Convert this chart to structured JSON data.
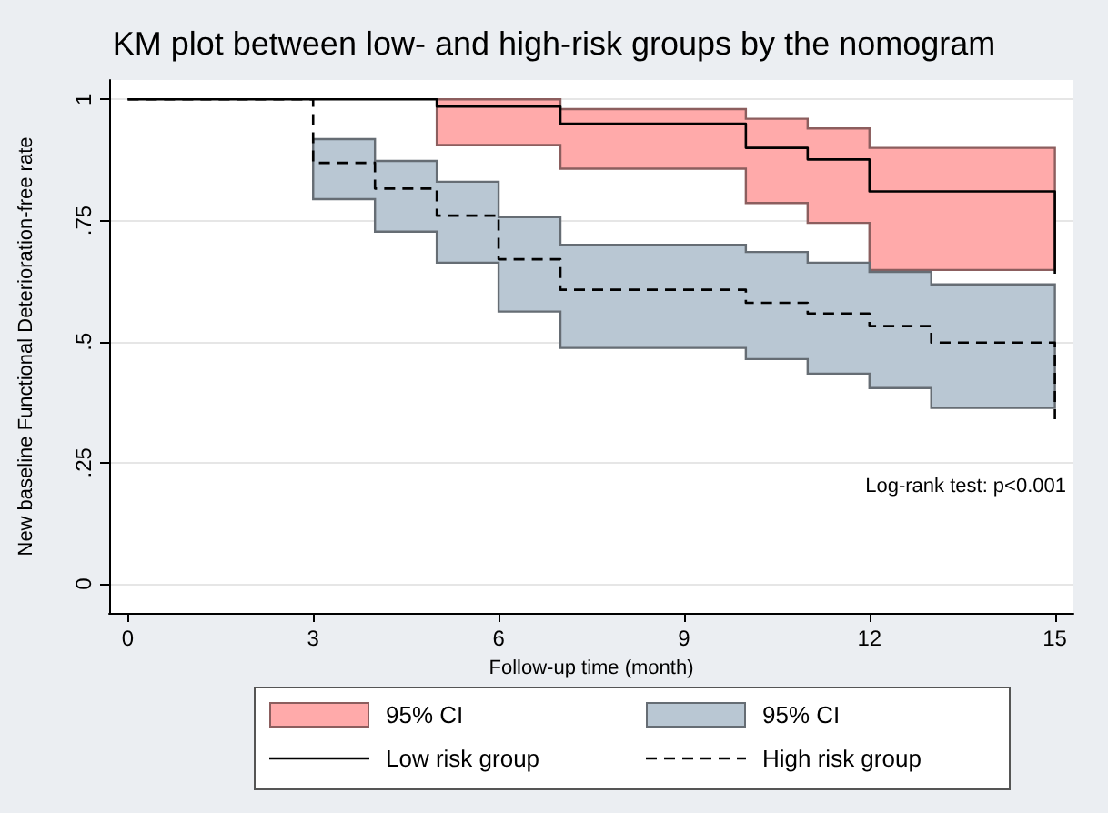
{
  "chart_data": {
    "type": "step",
    "title": "KM plot between low- and high-risk groups by the nomogram",
    "xlabel": "Follow-up time (month)",
    "ylabel": "New baseline Functional Deterioration-free rate",
    "xlim": [
      -0.3,
      15.3
    ],
    "xticks": [
      0,
      3,
      6,
      9,
      12,
      15
    ],
    "ylim": [
      -0.06,
      1.04
    ],
    "yticks": [
      {
        "value": 0,
        "label": "0"
      },
      {
        "value": 0.25,
        "label": ".25"
      },
      {
        "value": 0.5,
        "label": ".5"
      },
      {
        "value": 0.75,
        "label": ".75"
      },
      {
        "value": 1,
        "label": "1"
      }
    ],
    "grid": "y",
    "legend": "bottom",
    "annotations": [
      "Log-rank test: p<0.001",
      "95% CI",
      "95% CI"
    ],
    "series": [
      {
        "name": "Low risk group",
        "color": "#000000",
        "line_style": "solid",
        "x": [
          0,
          5,
          7,
          10,
          11,
          12,
          15
        ],
        "values": [
          1,
          0.985,
          0.95,
          0.9,
          0.876,
          0.81,
          0.64
        ],
        "upper": [
          null,
          1,
          0.98,
          0.96,
          0.94,
          0.9,
          0.9
        ],
        "lower": [
          null,
          0.906,
          0.857,
          0.786,
          0.745,
          0.648,
          0.648
        ]
      },
      {
        "name": "High risk group",
        "color": "#000000",
        "line_style": "dashed",
        "x": [
          0,
          3,
          4,
          5,
          6,
          7,
          10,
          11,
          12,
          13,
          15
        ],
        "values": [
          1,
          0.869,
          0.816,
          0.76,
          0.67,
          0.607,
          0.58,
          0.558,
          0.532,
          0.498,
          0.34
        ],
        "upper": [
          null,
          0.918,
          0.873,
          0.83,
          0.757,
          0.7,
          0.685,
          0.663,
          0.644,
          0.618,
          0.618
        ],
        "lower": [
          null,
          0.794,
          0.727,
          0.663,
          0.562,
          0.487,
          0.464,
          0.434,
          0.404,
          0.363,
          0.363
        ]
      }
    ]
  }
}
